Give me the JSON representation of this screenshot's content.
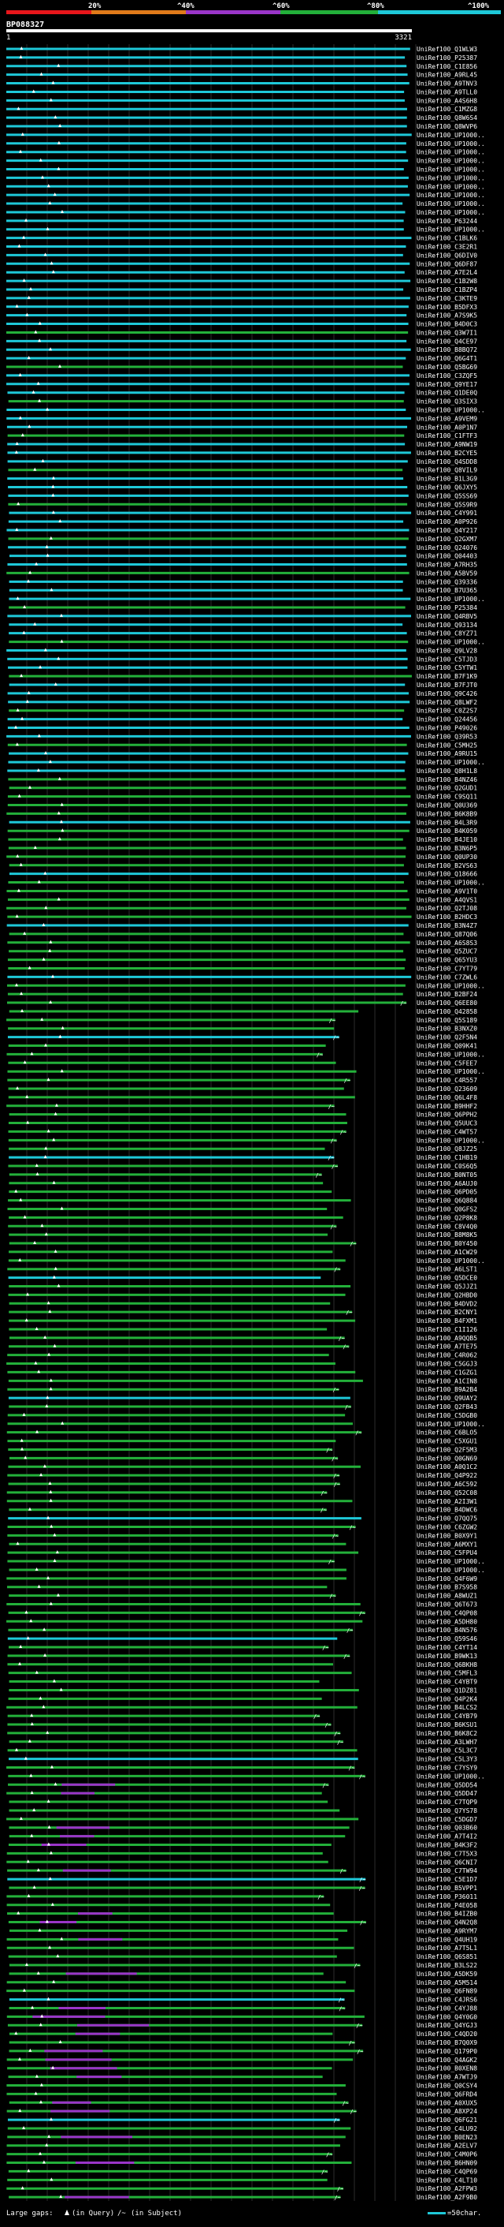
{
  "scale": {
    "labels": [
      "20%",
      "^40%",
      "^60%",
      "^80%",
      "^100%"
    ],
    "colors": [
      "#e8161b",
      "#e07a1a",
      "#9a35c8",
      "#23b03a",
      "#1ec8d8"
    ]
  },
  "query": {
    "name": "BP088327",
    "start": "1",
    "end": "3321"
  },
  "hits": [
    "UniRef100_Q1WLW3",
    "UniRef100_P25387",
    "UniRef100_C1E856",
    "UniRef100_A9RL45",
    "UniRef100_A9TNV3",
    "UniRef100_A9TLL0",
    "UniRef100_A4S6H8",
    "UniRef100_C1MZG8",
    "UniRef100_Q8W6S4",
    "UniRef100_Q8WVP6",
    "UniRef100_UP1000..",
    "UniRef100_UP1000..",
    "UniRef100_UP1000..",
    "UniRef100_UP1000..",
    "UniRef100_UP1000..",
    "UniRef100_UP1000..",
    "UniRef100_UP1000..",
    "UniRef100_UP1000..",
    "UniRef100_UP1000..",
    "UniRef100_UP1000..",
    "UniRef100_P63244",
    "UniRef100_UP1000..",
    "UniRef100_C1BLK6",
    "UniRef100_C3E2R1",
    "UniRef100_Q6DIV0",
    "UniRef100_Q6DF87",
    "UniRef100_A7E2L4",
    "UniRef100_C1B2W8",
    "UniRef100_C1BZP4",
    "UniRef100_C3KTE9",
    "UniRef100_B5DFX3",
    "UniRef100_A7S9K5",
    "UniRef100_B4D0C3",
    "UniRef100_Q3W7I1",
    "UniRef100_Q4CE97",
    "UniRef100_B8BQ72",
    "UniRef100_Q6G4T1",
    "UniRef100_Q5BG69",
    "UniRef100_C3ZQF5",
    "UniRef100_Q9YE17",
    "UniRef100_Q1DE0Q",
    "UniRef100_Q3SIX3",
    "UniRef100_UP1000..",
    "UniRef100_A9VEM9",
    "UniRef100_A0P1N7",
    "UniRef100_C1FTF3",
    "UniRef100_A9NW19",
    "UniRef100_B2CYE5",
    "UniRef100_Q4SDD8",
    "UniRef100_Q8VIL9",
    "UniRef100_B1L3G9",
    "UniRef100_Q6JXY5",
    "UniRef100_Q5SS69",
    "UniRef100_Q5S9R9",
    "UniRef100_C4Y991",
    "UniRef100_A0P926",
    "UniRef100_Q4Y217",
    "UniRef100_Q2GXM7",
    "UniRef100_Q24076",
    "UniRef100_Q04403",
    "UniRef100_A7RH35",
    "UniRef100_A5BV59",
    "UniRef100_Q39336",
    "UniRef100_B7U365",
    "UniRef100_UP1000..",
    "UniRef100_P25384",
    "UniRef100_Q4RBV5",
    "UniRef100_Q93134",
    "UniRef100_C8YZ71",
    "UniRef100_UP1000..",
    "UniRef100_Q9LV28",
    "UniRef100_C5TJD3",
    "UniRef100_C5YTW1",
    "UniRef100_B7F1K9",
    "UniRef100_B7FJT0",
    "UniRef100_Q9C426",
    "UniRef100_Q8LWF2",
    "UniRef100_C0Z2S7",
    "UniRef100_Q24456",
    "UniRef100_P49026",
    "UniRef100_Q39R53",
    "UniRef100_C5MH25",
    "UniRef100_A9RU15",
    "UniRef100_UP1000..",
    "UniRef100_Q8H1L8",
    "UniRef100_B4NZ46",
    "UniRef100_Q2GUD1",
    "UniRef100_C9SQ11",
    "UniRef100_Q0U369",
    "UniRef100_B6K8B9",
    "UniRef100_B4L3R9",
    "UniRef100_B4K059",
    "UniRef100_B4JE10",
    "UniRef100_B3N6P5",
    "UniRef100_Q0UP30",
    "UniRef100_B2VS63",
    "UniRef100_Q18666",
    "UniRef100_UP1000..",
    "UniRef100_A9V1T0",
    "UniRef100_A4QVS1",
    "UniRef100_Q2TJ08",
    "UniRef100_B2HDC3",
    "UniRef100_B3N4Z7",
    "UniRef100_Q87Q06",
    "UniRef100_A6S8S3",
    "UniRef100_Q5ZUC7",
    "UniRef100_Q65YU3",
    "UniRef100_C7YT79",
    "UniRef100_C7ZWL6",
    "UniRef100_UP1000..",
    "UniRef100_B2BF24",
    "UniRef100_Q6EE80",
    "UniRef100_Q42858",
    "UniRef100_Q5S189",
    "UniRef100_B3NXZ0",
    "UniRef100_Q2F5N4",
    "UniRef100_Q09K41",
    "UniRef100_UP1000..",
    "UniRef100_C5FEE7",
    "UniRef100_UP1000..",
    "UniRef100_C4R557",
    "UniRef100_Q23609",
    "UniRef100_Q6L4F8",
    "UniRef100_B9HHF2",
    "UniRef100_Q6PPH2",
    "UniRef100_Q5UUC3",
    "UniRef100_C4WT57",
    "UniRef100_UP1000..",
    "UniRef100_Q8JZ25",
    "UniRef100_C1HB19",
    "UniRef100_C0S6Q5",
    "UniRef100_B0NT05",
    "UniRef100_A6AUJ0",
    "UniRef100_Q6PD05",
    "UniRef100_Q6Q884",
    "UniRef100_Q0GFS2",
    "UniRef100_Q2P8K8",
    "UniRef100_C8V4Q0",
    "UniRef100_B8M8K5",
    "UniRef100_B0Y450",
    "UniRef100_A1CW29",
    "UniRef100_UP1000..",
    "UniRef100_A6LST1",
    "UniRef100_Q5DCE0",
    "UniRef100_Q5JJZ1",
    "UniRef100_Q2HBD0",
    "UniRef100_B4DVD2",
    "UniRef100_B2CNY1",
    "UniRef100_B4FXM1",
    "UniRef100_C1I126",
    "UniRef100_A9QQB5",
    "UniRef100_A7TE75",
    "UniRef100_C4R062",
    "UniRef100_C5GGJ3",
    "UniRef100_C1GZG1",
    "UniRef100_A1CIN8",
    "UniRef100_B9A2B4",
    "UniRef100_Q9UAY2",
    "UniRef100_Q2FB43",
    "UniRef100_C5DGB0",
    "UniRef100_UP1000..",
    "UniRef100_C6BLO5",
    "UniRef100_C5XGU1",
    "UniRef100_Q2F5M3",
    "UniRef100_Q0GN69",
    "UniRef100_A0Q1C2",
    "UniRef100_Q4P922",
    "UniRef100_A6C592",
    "UniRef100_Q52C08",
    "UniRef100_A2I3W1",
    "UniRef100_B4DWC6",
    "UniRef100_Q7QQ75",
    "UniRef100_C6ZGW2",
    "UniRef100_B0X9Y1",
    "UniRef100_A6MXY1",
    "UniRef100_C5FPU4",
    "UniRef100_UP1000..",
    "UniRef100_UP1000..",
    "UniRef100_Q4F6W9",
    "UniRef100_B7S958",
    "UniRef100_A8WUZ1",
    "UniRef100_Q6T673",
    "UniRef100_C4QP08",
    "UniRef100_A5DH80",
    "UniRef100_B4N576",
    "UniRef100_Q59S46",
    "UniRef100_C4YT14",
    "UniRef100_B9WK13",
    "UniRef100_Q6BKH8",
    "UniRef100_C5MFL3",
    "UniRef100_C4YBT9",
    "UniRef100_Q1DZ81",
    "UniRef100_Q4P2K4",
    "UniRef100_B4LCS2",
    "UniRef100_C4YB79",
    "UniRef100_B6KSU1",
    "UniRef100_B6K8C2",
    "UniRef100_A3LWH7",
    "UniRef100_C5L3C7",
    "UniRef100_C5L3Y3",
    "UniRef100_C7YSY9",
    "UniRef100_UP1000..",
    "UniRef100_Q5DD54",
    "UniRef100_Q5DD47",
    "UniRef100_C7TQP9",
    "UniRef100_Q7YS78",
    "UniRef100_C5DGD7",
    "UniRef100_Q03B60",
    "UniRef100_A7T4I2",
    "UniRef100_B4K3F2",
    "UniRef100_C7T5X3",
    "UniRef100_Q6CNI7",
    "UniRef100_C7TW94",
    "UniRef100_C5E1D7",
    "UniRef100_B5VPP1",
    "UniRef100_P36011",
    "UniRef100_P4E058",
    "UniRef100_B4IZB0",
    "UniRef100_Q4N2Q8",
    "UniRef100_A9RYM7",
    "UniRef100_Q4UH19",
    "UniRef100_A7T5L1",
    "UniRef100_Q6S851",
    "UniRef100_B3LS22",
    "UniRef100_A5DK59",
    "UniRef100_A5M514",
    "UniRef100_Q6FN89",
    "UniRef100_C4JRS6",
    "UniRef100_C4YJ88",
    "UniRef100_Q4Y0G0",
    "UniRef100_Q4YGJ3",
    "UniRef100_C4QD20",
    "UniRef100_B7Q0X9",
    "UniRef100_Q179P0",
    "UniRef100_Q4AGK2",
    "UniRef100_B0XEN8",
    "UniRef100_A7WTJ9",
    "UniRef100_Q0CSY4",
    "UniRef100_Q6FRD4",
    "UniRef100_A0XUX5",
    "UniRef100_A8XP24",
    "UniRef100_Q6FG21",
    "UniRef100_C4LU92",
    "UniRef100_B0EN23",
    "UniRef100_A2ELV7",
    "UniRef100_C4M0P6",
    "UniRef100_B6HN09",
    "UniRef100_C4QP69",
    "UniRef100_C4LT10",
    "UniRef100_A2FPW3",
    "UniRef100_A2F9B0"
  ],
  "legend": {
    "text_gaps": "Large gaps:",
    "text_query": "(in Query)",
    "text_subject": "(in Subject)",
    "text_scale": "=50char."
  }
}
